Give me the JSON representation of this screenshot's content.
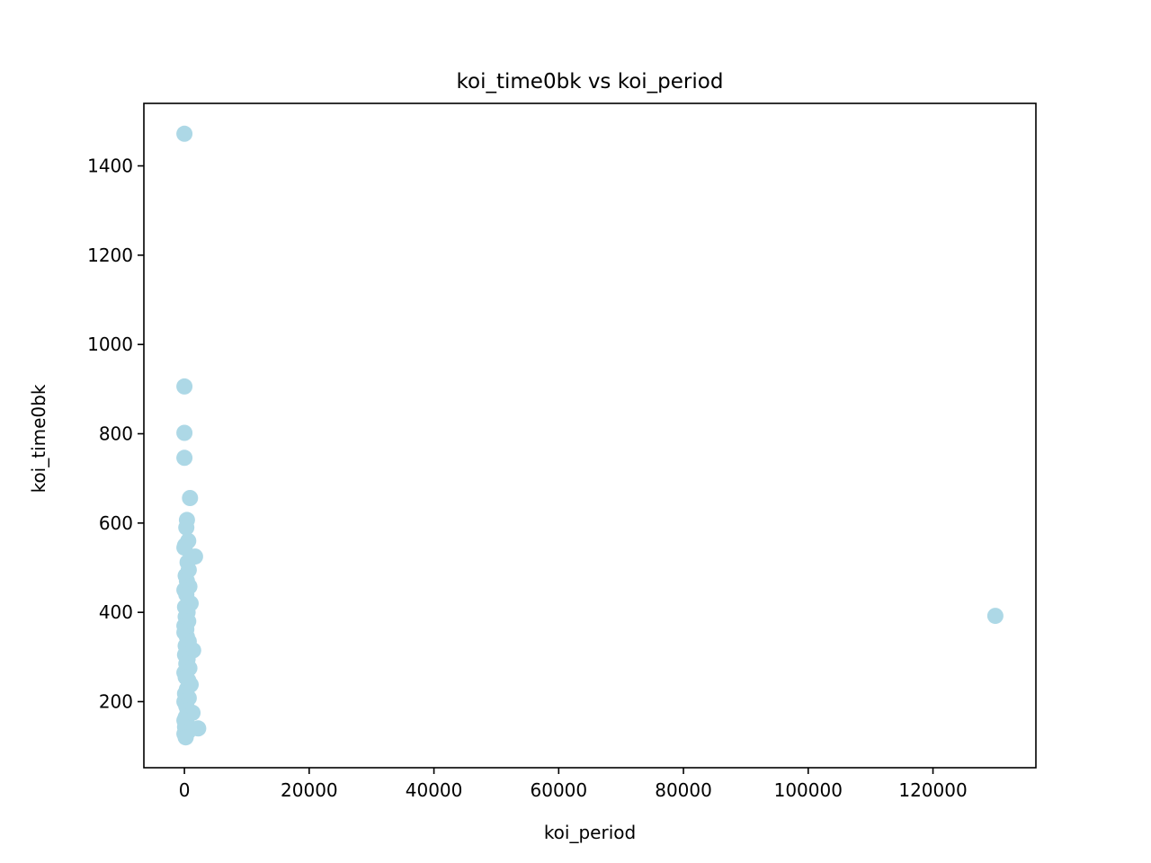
{
  "chart_data": {
    "type": "scatter",
    "title": "koi_time0bk vs koi_period",
    "xlabel": "koi_period",
    "ylabel": "koi_time0bk",
    "xlim": [
      -6500,
      136500
    ],
    "ylim": [
      52,
      1540
    ],
    "xticks": [
      0,
      20000,
      40000,
      60000,
      80000,
      100000,
      120000
    ],
    "yticks": [
      200,
      400,
      600,
      800,
      1000,
      1200,
      1400
    ],
    "grid": false,
    "point_color": "#add8e6",
    "series": [
      {
        "points": [
          [
            0,
            1472
          ],
          [
            0,
            906
          ],
          [
            0,
            802
          ],
          [
            0,
            746
          ],
          [
            900,
            656
          ],
          [
            400,
            607
          ],
          [
            300,
            590
          ],
          [
            600,
            560
          ],
          [
            100,
            550
          ],
          [
            0,
            545
          ],
          [
            1700,
            525
          ],
          [
            500,
            512
          ],
          [
            700,
            495
          ],
          [
            200,
            482
          ],
          [
            400,
            470
          ],
          [
            800,
            458
          ],
          [
            0,
            450
          ],
          [
            300,
            440
          ],
          [
            1000,
            420
          ],
          [
            100,
            412
          ],
          [
            500,
            400
          ],
          [
            200,
            390
          ],
          [
            600,
            380
          ],
          [
            0,
            370
          ],
          [
            300,
            362
          ],
          [
            0,
            355
          ],
          [
            400,
            345
          ],
          [
            700,
            335
          ],
          [
            200,
            325
          ],
          [
            1400,
            315
          ],
          [
            100,
            305
          ],
          [
            500,
            295
          ],
          [
            300,
            285
          ],
          [
            800,
            275
          ],
          [
            0,
            265
          ],
          [
            200,
            255
          ],
          [
            600,
            248
          ],
          [
            1000,
            238
          ],
          [
            400,
            228
          ],
          [
            100,
            218
          ],
          [
            700,
            208
          ],
          [
            0,
            200
          ],
          [
            300,
            190
          ],
          [
            500,
            180
          ],
          [
            1300,
            175
          ],
          [
            200,
            165
          ],
          [
            0,
            158
          ],
          [
            400,
            150
          ],
          [
            100,
            143
          ],
          [
            2200,
            140
          ],
          [
            600,
            133
          ],
          [
            0,
            128
          ],
          [
            200,
            120
          ],
          [
            130000,
            392
          ]
        ]
      }
    ]
  }
}
